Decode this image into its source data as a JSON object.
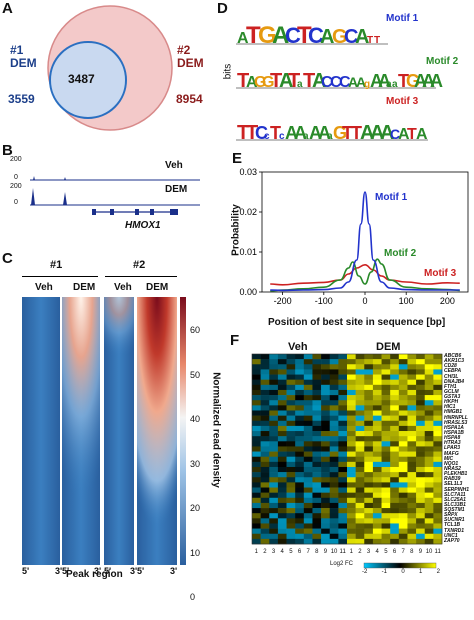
{
  "panels": {
    "a": {
      "label": "A",
      "left_set_num": "#1",
      "left_set_name": "DEM",
      "left_count": "3559",
      "right_set_num": "#2",
      "right_set_name": "DEM",
      "right_count": "8954",
      "overlap_count": "3487",
      "colors": {
        "outer_fill": "#f3c9c9",
        "outer_stroke": "#d88a8a",
        "inner_fill": "#c9d9f0",
        "inner_stroke": "#2a6fc1"
      }
    },
    "b": {
      "label": "B",
      "track_veh": "Veh",
      "track_dem": "DEM",
      "scale_veh": "200",
      "scale_dem": "200",
      "tick0": "0",
      "tick0b": "0",
      "gene": "HMOX1",
      "colors": {
        "track": "#1a2f8a"
      }
    },
    "c": {
      "label": "C",
      "group1": "#1",
      "group2": "#2",
      "col_veh_1": "Veh",
      "col_dem_1": "DEM",
      "col_veh_2": "Veh",
      "col_dem_2": "DEM",
      "five_prime": "5'",
      "three_prime": "3'",
      "xlabel": "Peak region",
      "colorbar_title": "Normalized read density",
      "colorbar_ticks": [
        "60",
        "50",
        "40",
        "30",
        "20",
        "10",
        "0"
      ]
    },
    "d": {
      "label": "D",
      "ylabel": "bits",
      "motifs": [
        "Motif 1",
        "Motif 2",
        "Motif 3"
      ],
      "motif_colors": [
        "#2233cc",
        "#2a8a2a",
        "#cc2222"
      ],
      "sequences": [
        "aTGACTCAGCAtt",
        "TAGGTATaTACCCAAgAAaaTGAAAg",
        "TTCcTcAAaAAaGTTAAAcATA"
      ]
    },
    "e": {
      "label": "E",
      "ylabel": "Probability",
      "xlabel": "Position of best site in sequence [bp]",
      "series_labels": [
        "Motif 1",
        "Motif 2",
        "Motif 3"
      ]
    },
    "f": {
      "label": "F",
      "group_veh": "Veh",
      "group_dem": "DEM",
      "genes": [
        "ABCB6",
        "AKR1C3",
        "CD28",
        "CEBPA",
        "CHI3L",
        "DNAJB4",
        "FTH1",
        "GCLM",
        "GSTA3",
        "HKPH",
        "HIC1",
        "HMGB1",
        "HNRNPLL",
        "HRASLS3",
        "HSPA1A",
        "HSPA1B",
        "HSPA8",
        "HTRA3",
        "LPAR3",
        "MAFG",
        "MIC",
        "NQO1",
        "NRAS2",
        "PLEKHB1",
        "RAB39",
        "SEL1L3",
        "SERPINH1",
        "SLC7A11",
        "SLC25A1",
        "SLC33B1",
        "SQSTM1",
        "SRPX",
        "SUCNR1",
        "TCL1B",
        "TXNRD1",
        "UNC1",
        "ZAP70"
      ],
      "columns": [
        "1",
        "2",
        "3",
        "4",
        "5",
        "6",
        "7",
        "8",
        "9",
        "10",
        "11",
        "1",
        "2",
        "3",
        "4",
        "5",
        "6",
        "7",
        "8",
        "9",
        "10",
        "11"
      ],
      "legend_title": "Log2 FC",
      "legend_ticks": [
        "-2",
        "-1",
        "0",
        "1",
        "2"
      ]
    }
  },
  "chart_data": [
    {
      "type": "line",
      "xlabel": "Position of best site in sequence [bp]",
      "ylabel": "Probability",
      "xlim": [
        -250,
        250
      ],
      "ylim": [
        0,
        0.03
      ],
      "xticks": [
        -200,
        -100,
        0,
        100,
        200
      ],
      "yticks": [
        0,
        0.01,
        0.02,
        0.03
      ],
      "series": [
        {
          "name": "Motif 1",
          "color": "#2233cc",
          "x": [
            -230,
            -200,
            -150,
            -100,
            -60,
            -40,
            -20,
            -10,
            0,
            10,
            20,
            40,
            60,
            100,
            150,
            200,
            230
          ],
          "y": [
            0.0005,
            0.0004,
            0.0005,
            0.0006,
            0.001,
            0.0025,
            0.008,
            0.017,
            0.025,
            0.017,
            0.008,
            0.0025,
            0.001,
            0.0006,
            0.0005,
            0.0005,
            0.0005
          ]
        },
        {
          "name": "Motif 2",
          "color": "#2a8a2a",
          "x": [
            -230,
            -200,
            -150,
            -100,
            -60,
            -40,
            -30,
            -15,
            0,
            15,
            30,
            40,
            60,
            100,
            150,
            200,
            230
          ],
          "y": [
            0.0003,
            0.0005,
            0.0008,
            0.0012,
            0.003,
            0.006,
            0.0075,
            0.004,
            0.002,
            0.005,
            0.0082,
            0.007,
            0.003,
            0.0012,
            0.0008,
            0.0006,
            0.0004
          ]
        },
        {
          "name": "Motif 3",
          "color": "#cc2222",
          "x": [
            -230,
            -200,
            -150,
            -100,
            -60,
            -40,
            -20,
            0,
            20,
            40,
            60,
            100,
            150,
            200,
            230
          ],
          "y": [
            0.002,
            0.0018,
            0.0022,
            0.0024,
            0.003,
            0.0045,
            0.006,
            0.0068,
            0.0055,
            0.004,
            0.003,
            0.0025,
            0.002,
            0.0023,
            0.0022
          ]
        }
      ]
    },
    {
      "type": "heatmap",
      "columns": [
        "Veh 1",
        "Veh 2",
        "Veh 3",
        "Veh 4",
        "Veh 5",
        "Veh 6",
        "Veh 7",
        "Veh 8",
        "Veh 9",
        "Veh 10",
        "Veh 11",
        "DEM 1",
        "DEM 2",
        "DEM 3",
        "DEM 4",
        "DEM 5",
        "DEM 6",
        "DEM 7",
        "DEM 8",
        "DEM 9",
        "DEM 10",
        "DEM 11"
      ],
      "rows": [
        "ABCB6",
        "AKR1C3",
        "CD28",
        "CEBPA",
        "CHI3L",
        "DNAJB4",
        "FTH1",
        "GCLM",
        "GSTA3",
        "HKPH",
        "HIC1",
        "HMGB1",
        "HNRNPLL",
        "HRASLS3",
        "HSPA1A",
        "HSPA1B",
        "HSPA8",
        "HTRA3",
        "LPAR3",
        "MAFG",
        "MIC",
        "NQO1",
        "NRAS2",
        "PLEKHB1",
        "RAB39",
        "SEL1L3",
        "SERPINH1",
        "SLC7A11",
        "SLC25A1",
        "SLC33B1",
        "SQSTM1",
        "SRPX",
        "SUCNR1",
        "TCL1B",
        "TXNRD1",
        "UNC1",
        "ZAP70"
      ],
      "colorscale": {
        "min": -2,
        "max": 2,
        "label": "Log2 FC"
      }
    }
  ]
}
